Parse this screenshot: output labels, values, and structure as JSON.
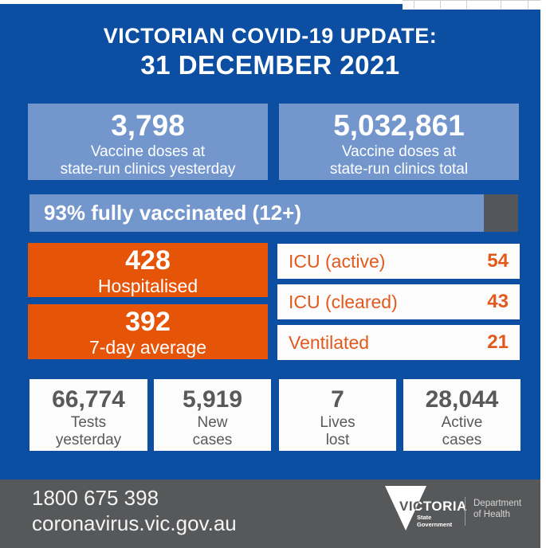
{
  "header": {
    "title_line1": "VICTORIAN COVID-19 UPDATE:",
    "title_line2": "31 DECEMBER 2021"
  },
  "vaccine_boxes": [
    {
      "value": "3,798",
      "label_line1": "Vaccine doses at",
      "label_line2": "state-run clinics yesterday"
    },
    {
      "value": "5,032,861",
      "label_line1": "Vaccine doses at",
      "label_line2": "state-run clinics total"
    }
  ],
  "vaccination_bar": {
    "label": "93% fully vaccinated (12+)",
    "percent": 93
  },
  "hospitalisation_boxes": [
    {
      "value": "428",
      "label": "Hospitalised"
    },
    {
      "value": "392",
      "label": "7-day average"
    }
  ],
  "icu_rows": [
    {
      "label": "ICU (active)",
      "value": "54"
    },
    {
      "label": "ICU (cleared)",
      "value": "43"
    },
    {
      "label": "Ventilated",
      "value": "21"
    }
  ],
  "summary_stats": [
    {
      "value": "66,774",
      "label_line1": "Tests",
      "label_line2": "yesterday"
    },
    {
      "value": "5,919",
      "label_line1": "New",
      "label_line2": "cases"
    },
    {
      "value": "7",
      "label_line1": "Lives",
      "label_line2": "lost"
    },
    {
      "value": "28,044",
      "label_line1": "Active",
      "label_line2": "cases"
    }
  ],
  "footer": {
    "phone": "1800 675 398",
    "website": "coronavirus.vic.gov.au",
    "logo_text": "VICTORIA",
    "logo_sub1": "State",
    "logo_sub2": "Government",
    "department_line1": "Department",
    "department_line2": "of Health"
  },
  "colors": {
    "background_blue": "#0B4EA2",
    "light_blue": "#7397CD",
    "orange": "#E65407",
    "icu_text_orange": "#E2591D",
    "footer_grey": "#57585A",
    "bar_remainder_grey": "#54565B",
    "stat_text_grey": "#58595B"
  }
}
